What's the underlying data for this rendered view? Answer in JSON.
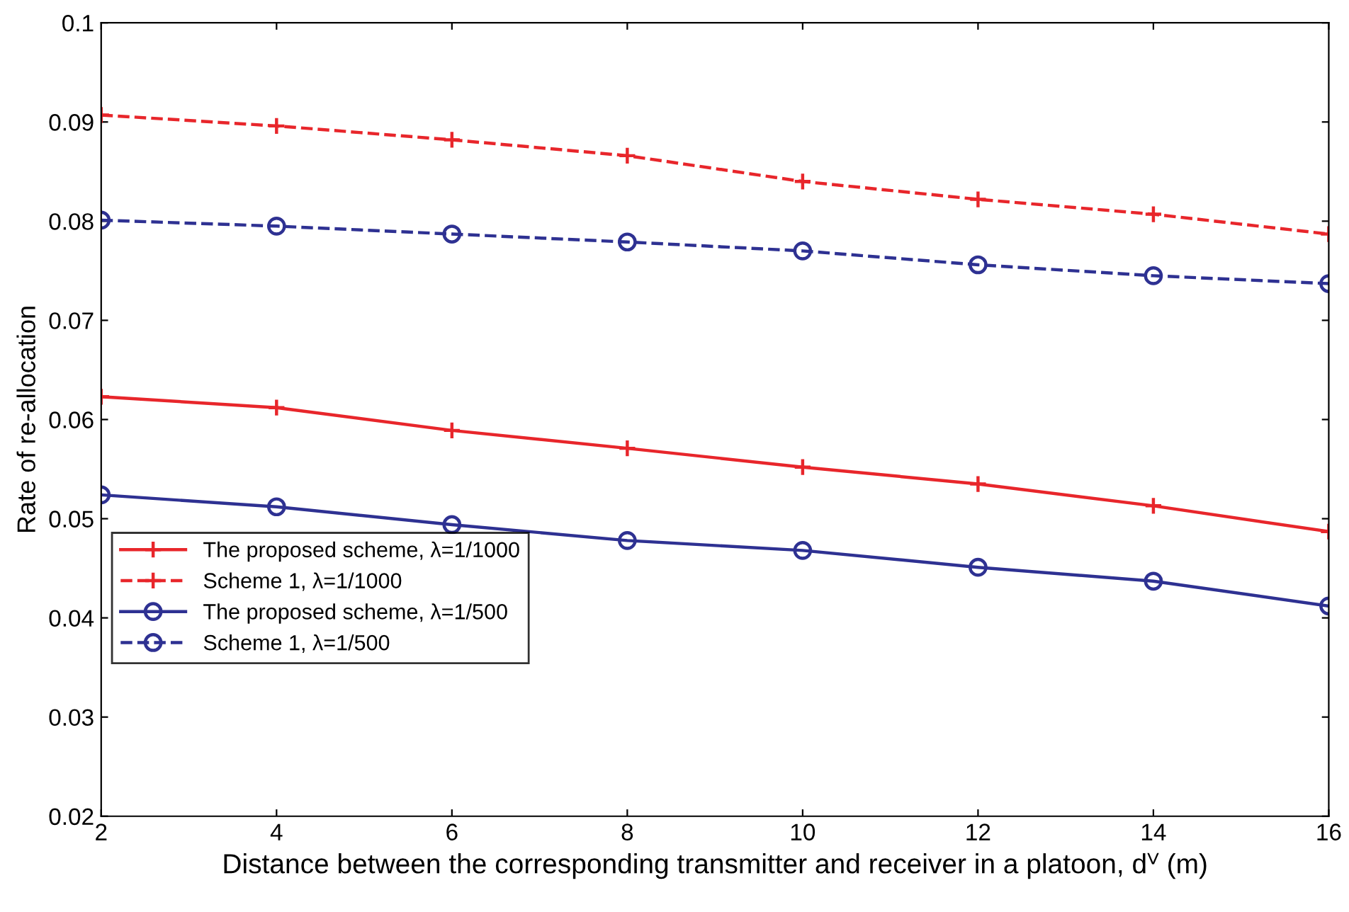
{
  "chart_data": {
    "type": "line",
    "xlabel": "Distance between the corresponding transmitter and receiver in a platoon, dⱽ (m)",
    "ylabel": "Rate of re-allocation",
    "x": [
      2,
      4,
      6,
      8,
      10,
      12,
      14,
      16
    ],
    "series": [
      {
        "name": "The proposed scheme, λ=1/1000",
        "color": "#e8262b",
        "marker": "cross",
        "line_style": "solid",
        "values": [
          0.0623,
          0.0612,
          0.0589,
          0.0571,
          0.0552,
          0.0535,
          0.0513,
          0.0487
        ]
      },
      {
        "name": "Scheme 1, λ=1/1000",
        "color": "#e8262b",
        "marker": "cross",
        "line_style": "dashed",
        "values": [
          0.0907,
          0.0896,
          0.0882,
          0.0866,
          0.084,
          0.0822,
          0.0807,
          0.0787
        ]
      },
      {
        "name": "The proposed scheme, λ=1/500",
        "color": "#2e3192",
        "marker": "circle",
        "line_style": "solid",
        "values": [
          0.0524,
          0.0512,
          0.0494,
          0.0478,
          0.0468,
          0.0451,
          0.0437,
          0.0412
        ]
      },
      {
        "name": "Scheme 1, λ=1/500",
        "color": "#2e3192",
        "marker": "circle",
        "line_style": "dashed",
        "values": [
          0.0801,
          0.0795,
          0.0787,
          0.0779,
          0.077,
          0.0756,
          0.0745,
          0.0737
        ]
      }
    ],
    "xlim": [
      2,
      16
    ],
    "xticks": [
      2,
      4,
      6,
      8,
      10,
      12,
      14,
      16
    ],
    "ylim": [
      0.02,
      0.1
    ],
    "yticks": [
      0.02,
      0.03,
      0.04,
      0.05,
      0.06,
      0.07,
      0.08,
      0.09,
      {
        "value": 0.1,
        "label": "0.1"
      }
    ],
    "grid": false,
    "legend": "center left"
  }
}
